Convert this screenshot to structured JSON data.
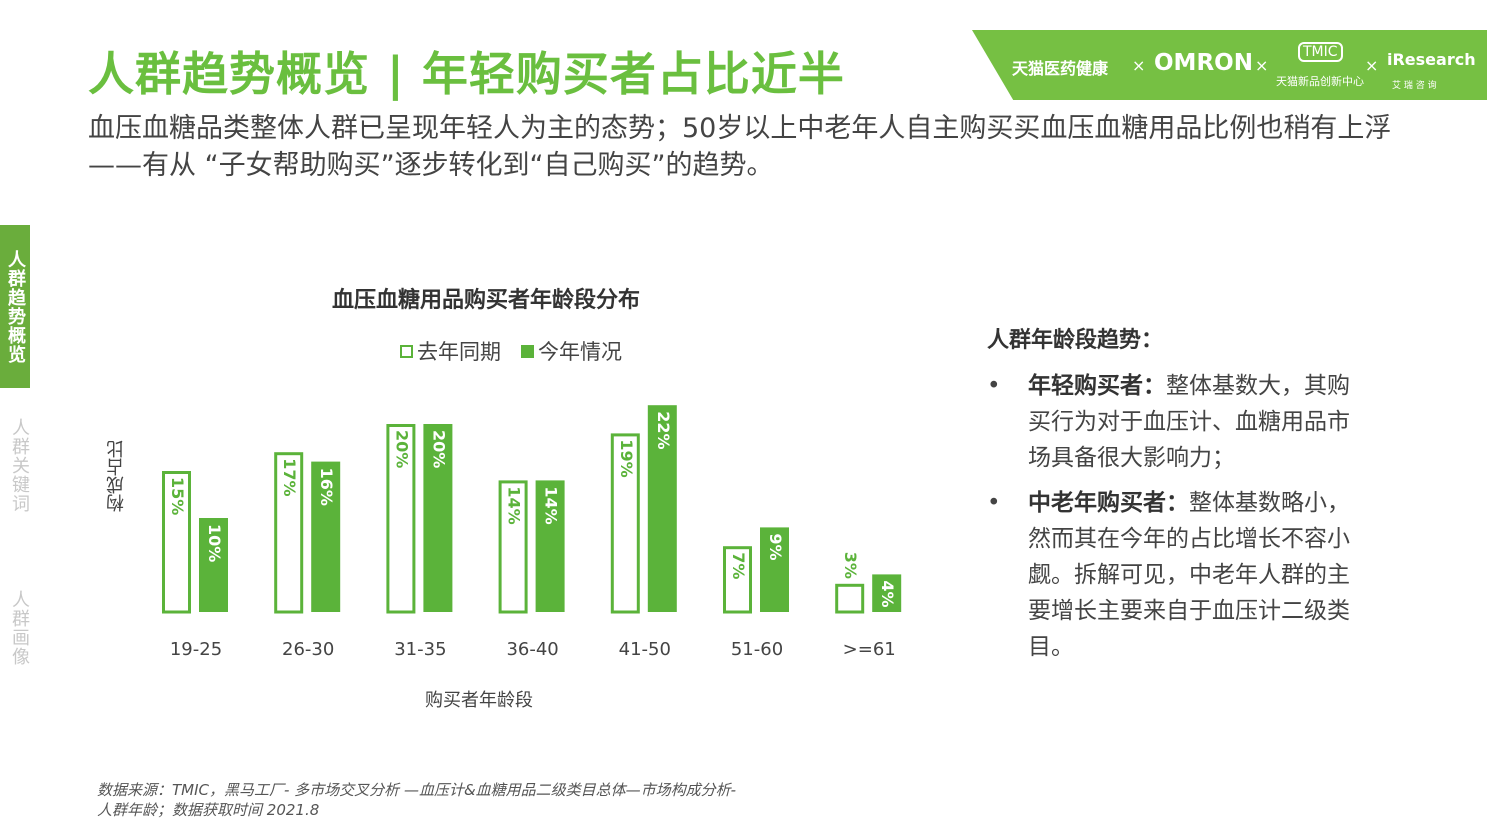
{
  "title": "人群趋势概览 | 年轻购买者占比近半",
  "banner": {
    "brand1": "天猫医药健康",
    "x": "×",
    "brand2": "OMRON",
    "brand3_logo": "TMIC",
    "brand3": "天猫新品创新中心",
    "brand4": "iResearch",
    "brand4_sub": "艾 瑞 咨 询"
  },
  "subtitle": "血压血糖品类整体人群已呈现年轻人为主的态势；50岁以上中老年人自主购买买血压血糖用品比例也稍有上浮——有从 “子女帮助购买”逐步转化到“自己购买”的趋势。",
  "nav": [
    "人群趋势概览",
    "人群关键词",
    "人群画像"
  ],
  "chart_data": {
    "type": "bar",
    "title": "血压血糖用品购买者年龄段分布",
    "xlabel": "购买者年龄段",
    "ylabel": "构成占比",
    "categories": [
      "19-25",
      "26-30",
      "31-35",
      "36-40",
      "41-50",
      "51-60",
      ">=61"
    ],
    "series": [
      {
        "name": "去年同期",
        "values": [
          15,
          17,
          20,
          14,
          19,
          7,
          3
        ],
        "color": "#5bb33a",
        "style": "outline"
      },
      {
        "name": "今年情况",
        "values": [
          10,
          16,
          20,
          14,
          22,
          9,
          4
        ],
        "color": "#5bb33a",
        "style": "filled"
      }
    ],
    "value_suffix": "%",
    "legend": "top",
    "grid": false
  },
  "right": {
    "heading": "人群年龄段趋势：",
    "bullets": [
      {
        "bold": "年轻购买者：",
        "text": "整体基数大，其购买行为对于血压计、血糖用品市场具备很大影响力；"
      },
      {
        "bold": "中老年购买者：",
        "text": "整体基数略小，然而其在今年的占比增长不容小觑。拆解可见，中老年人群的主要增长主要来自于血压计二级类目。"
      }
    ],
    "bullet_char": "•"
  },
  "source": "数据来源：TMIC，黑马工厂- 多市场交叉分析 —血压计&血糖用品二级类目总体—市场构成分析-人群年龄；数据获取时间  2021.8"
}
